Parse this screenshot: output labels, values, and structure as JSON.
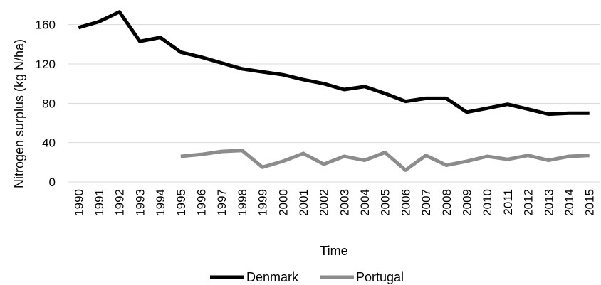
{
  "chart_data": {
    "type": "line",
    "title": "",
    "xlabel": "Time",
    "ylabel": "Nitrogen surplus (kg N/ha)",
    "ylim": [
      0,
      180
    ],
    "yticks": [
      0,
      40,
      80,
      120,
      160
    ],
    "grid": true,
    "legend_position": "bottom",
    "x": [
      "1990",
      "1991",
      "1992",
      "1993",
      "1994",
      "1995",
      "1996",
      "1997",
      "1998",
      "1999",
      "2000",
      "2001",
      "2002",
      "2003",
      "2004",
      "2005",
      "2006",
      "2007",
      "2008",
      "2009",
      "2010",
      "2011",
      "2012",
      "2013",
      "2014",
      "2015"
    ],
    "series": [
      {
        "name": "Denmark",
        "color": "#000000",
        "values": [
          157,
          163,
          173,
          143,
          147,
          132,
          127,
          121,
          115,
          112,
          109,
          104,
          100,
          94,
          97,
          90,
          82,
          85,
          85,
          71,
          75,
          79,
          74,
          69,
          70,
          70
        ]
      },
      {
        "name": "Portugal",
        "color": "#8c8c8c",
        "values": [
          null,
          null,
          null,
          null,
          null,
          26,
          28,
          31,
          32,
          15,
          21,
          29,
          18,
          26,
          22,
          30,
          12,
          27,
          17,
          21,
          26,
          23,
          27,
          22,
          26,
          27
        ]
      }
    ]
  }
}
